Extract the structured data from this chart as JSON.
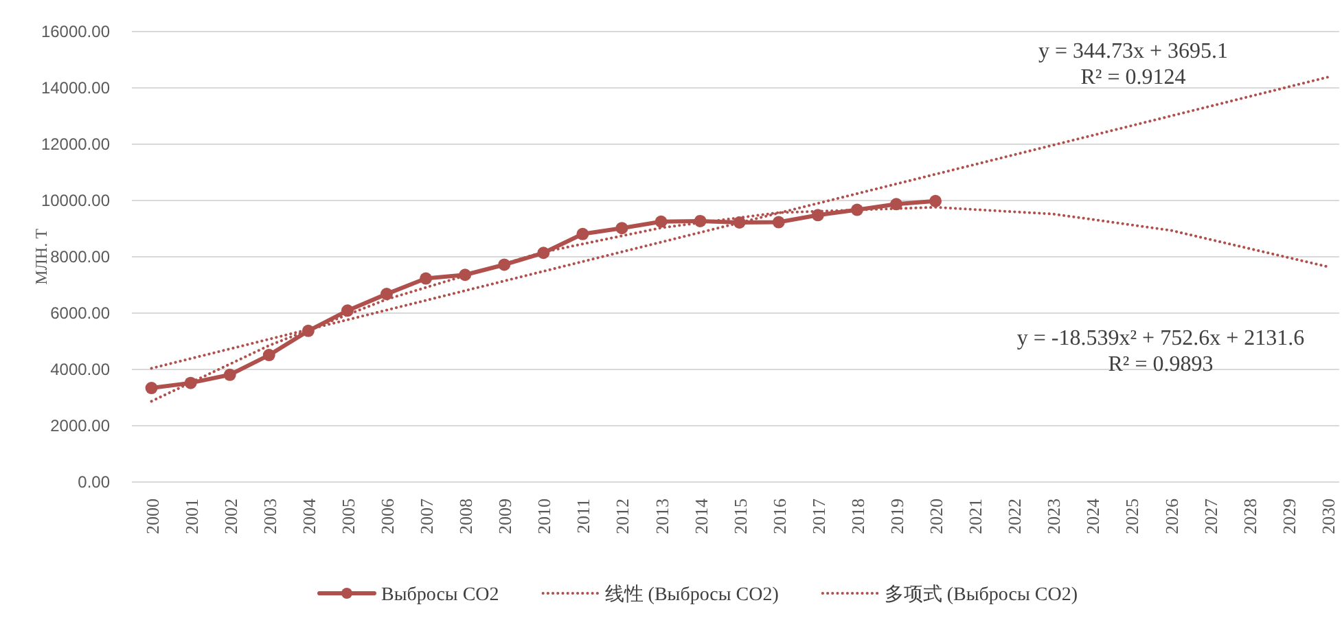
{
  "chart_data": {
    "type": "line",
    "ylabel": "МЛН. Т",
    "xlim": [
      1999.5,
      2030.3
    ],
    "xticks": [
      2000,
      2001,
      2002,
      2003,
      2004,
      2005,
      2006,
      2007,
      2008,
      2009,
      2010,
      2011,
      2012,
      2013,
      2014,
      2015,
      2016,
      2017,
      2018,
      2019,
      2020,
      2021,
      2022,
      2023,
      2024,
      2025,
      2026,
      2027,
      2028,
      2029,
      2030
    ],
    "ylim": [
      0,
      16000
    ],
    "yticks": [
      {
        "value": 0,
        "label": "0.00"
      },
      {
        "value": 2000,
        "label": "2000.00"
      },
      {
        "value": 4000,
        "label": "4000.00"
      },
      {
        "value": 6000,
        "label": "6000.00"
      },
      {
        "value": 8000,
        "label": "8000.00"
      },
      {
        "value": 10000,
        "label": "10000.00"
      },
      {
        "value": 12000,
        "label": "12000.00"
      },
      {
        "value": 14000,
        "label": "14000.00"
      },
      {
        "value": 16000,
        "label": "16000.00"
      }
    ],
    "grid": "y",
    "legend": "bottom",
    "series": [
      {
        "name": "Выбросы CO2",
        "color": "#b0504d",
        "marker": "circle",
        "line_style": "solid",
        "x": [
          2000,
          2001,
          2002,
          2003,
          2004,
          2005,
          2006,
          2007,
          2008,
          2009,
          2010,
          2011,
          2012,
          2013,
          2014,
          2015,
          2016,
          2017,
          2018,
          2019,
          2020
        ],
        "values": [
          3340,
          3520,
          3810,
          4510,
          5370,
          6090,
          6680,
          7230,
          7360,
          7720,
          8140,
          8810,
          9020,
          9250,
          9270,
          9220,
          9230,
          9480,
          9670,
          9870,
          9980
        ]
      },
      {
        "name": "线性 (Выбросы CO2)",
        "color": "#b0504d",
        "marker": "none",
        "line_style": "dotted",
        "x": [
          2000,
          2030
        ],
        "values": [
          4040,
          14380
        ]
      },
      {
        "name": "多项式 (Выбросы CO2)",
        "color": "#b0504d",
        "marker": "none",
        "line_style": "dotted",
        "x": [
          2000,
          2003,
          2006,
          2010,
          2013,
          2016,
          2020,
          2023,
          2026,
          2030
        ],
        "values": [
          2870,
          4850,
          6490,
          8170,
          9030,
          9570,
          9760,
          9520,
          8940,
          7650
        ]
      }
    ],
    "annotations": [
      "y = 344.73x + 3695.1",
      "R² = 0.9124",
      "y = -18.539x² + 752.6x + 2131.6",
      "R² = 0.9893"
    ]
  }
}
